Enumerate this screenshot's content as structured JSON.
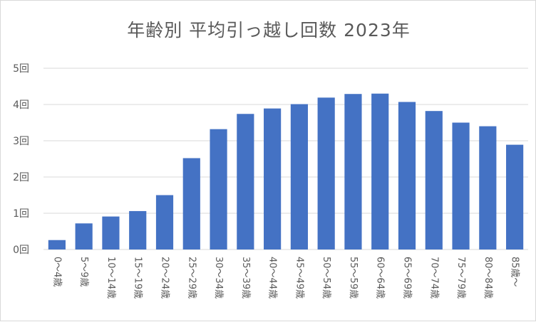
{
  "chart_data": {
    "type": "bar",
    "title": "年齢別 平均引っ越し回数 2023年",
    "xlabel": "",
    "ylabel": "",
    "categories": [
      "0～4歳",
      "5～9歳",
      "10～14歳",
      "15～19歳",
      "20～24歳",
      "25～29歳",
      "30～34歳",
      "35～39歳",
      "40～44歳",
      "45～49歳",
      "50～54歳",
      "55～59歳",
      "60～64歳",
      "65～69歳",
      "70～74歳",
      "75～79歳",
      "80～84歳",
      "85歳～"
    ],
    "values": [
      0.26,
      0.72,
      0.91,
      1.06,
      1.5,
      2.52,
      3.32,
      3.74,
      3.89,
      4.01,
      4.19,
      4.29,
      4.3,
      4.07,
      3.82,
      3.5,
      3.4,
      2.89
    ],
    "ylim": [
      0,
      5
    ],
    "yticks": [
      {
        "value": 0,
        "label": "0回"
      },
      {
        "value": 1,
        "label": "1回"
      },
      {
        "value": 2,
        "label": "2回"
      },
      {
        "value": 3,
        "label": "3回"
      },
      {
        "value": 4,
        "label": "4回"
      },
      {
        "value": 5,
        "label": "5回"
      }
    ],
    "grid": true,
    "legend": "none",
    "colors": {
      "bar": "#4472c4",
      "grid": "#d9d9d9",
      "text": "#595959"
    }
  }
}
